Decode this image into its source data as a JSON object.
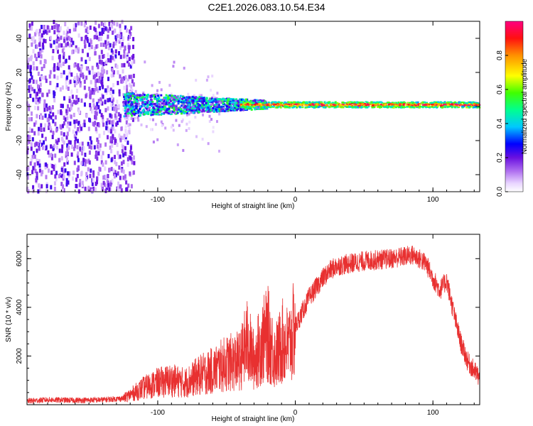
{
  "title": "C2E1.2026.083.10.54.E34",
  "chart_data": [
    {
      "type": "heatmap",
      "xlabel": "Height of straight line (km)",
      "ylabel": "Frequency (Hz)",
      "xlim": [
        -195,
        134
      ],
      "ylim": [
        -50,
        50
      ],
      "xticks": [
        -100,
        0,
        100
      ],
      "yticks": [
        -40,
        -20,
        0,
        20,
        40
      ],
      "colorbar": {
        "label": "Normalized spectral amplitude",
        "range": [
          0,
          1
        ],
        "ticks": [
          0.0,
          0.2,
          0.4,
          0.6,
          0.8
        ]
      },
      "description_regions": [
        {
          "x_range": [
            -195,
            -120
          ],
          "freq_spread": 50,
          "amplitude": [
            0.05,
            0.25
          ]
        },
        {
          "x_range": [
            -125,
            -20
          ],
          "freq_spread": 6,
          "amplitude": [
            0.1,
            0.55
          ]
        },
        {
          "x_range": [
            -20,
            134
          ],
          "freq_spread": 2,
          "amplitude": [
            0.3,
            1.0
          ]
        }
      ]
    },
    {
      "type": "line",
      "xlabel": "Height of straight line (km)",
      "ylabel": "SNR (10 * v/v)",
      "xlim": [
        -195,
        134
      ],
      "ylim": [
        0,
        7000
      ],
      "xticks": [
        -100,
        0,
        100
      ],
      "yticks": [
        2000,
        4000,
        6000
      ],
      "series": [
        {
          "name": "SNR",
          "color": "#e83030",
          "x": [
            -195,
            -180,
            -160,
            -140,
            -125,
            -110,
            -100,
            -90,
            -80,
            -70,
            -60,
            -50,
            -40,
            -35,
            -30,
            -25,
            -20,
            -15,
            -12,
            -10,
            -5,
            0,
            5,
            10,
            15,
            20,
            25,
            30,
            40,
            50,
            60,
            70,
            80,
            85,
            90,
            95,
            100,
            105,
            110,
            115,
            120,
            125,
            130,
            134
          ],
          "values": [
            150,
            200,
            180,
            200,
            260,
            700,
            900,
            1000,
            900,
            1200,
            1400,
            1700,
            1800,
            2600,
            1800,
            2500,
            2900,
            2000,
            2200,
            2600,
            2400,
            3200,
            3800,
            4400,
            4800,
            5200,
            5500,
            5700,
            5800,
            5900,
            5950,
            6000,
            6100,
            6150,
            6000,
            5800,
            5200,
            4700,
            5100,
            3800,
            2600,
            1800,
            1400,
            1100
          ]
        }
      ]
    }
  ]
}
